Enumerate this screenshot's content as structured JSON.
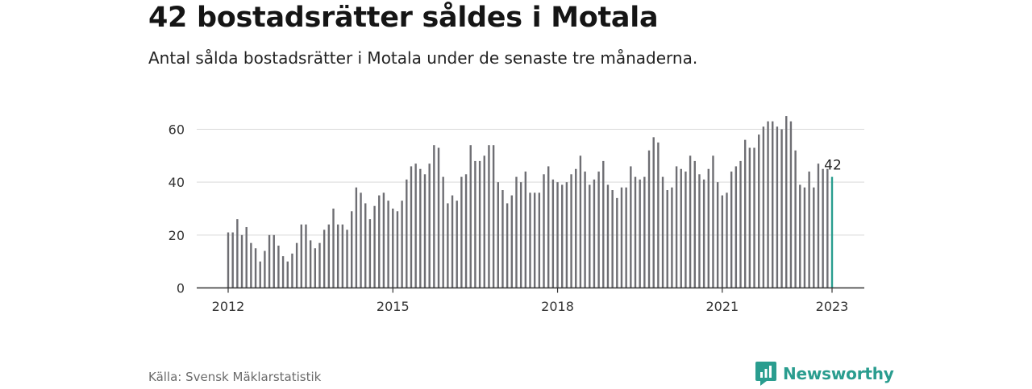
{
  "header": {
    "title": "42 bostadsrätter såldes i Motala",
    "subtitle": "Antal sålda bostadsrätter i Motala under de senaste tre månaderna."
  },
  "footer": {
    "source": "Källa: Svensk Mäklarstatistik",
    "brand": "Newsworthy"
  },
  "colors": {
    "bar": "#6e6e73",
    "highlight": "#2a9d8f",
    "grid": "#d9d9d9",
    "axis": "#333333"
  },
  "chart_data": {
    "type": "bar",
    "title": "42 bostadsrätter såldes i Motala",
    "subtitle": "Antal sålda bostadsrätter i Motala under de senaste tre månaderna.",
    "xlabel": "",
    "ylabel": "",
    "x_start": "2012-01",
    "x_interval": "month",
    "values": [
      21,
      21,
      26,
      20,
      23,
      17,
      15,
      10,
      14,
      20,
      20,
      16,
      12,
      10,
      13,
      17,
      24,
      24,
      18,
      15,
      17,
      22,
      24,
      30,
      24,
      24,
      22,
      29,
      38,
      36,
      32,
      26,
      31,
      35,
      36,
      33,
      30,
      29,
      33,
      41,
      46,
      47,
      45,
      43,
      47,
      54,
      53,
      42,
      32,
      35,
      33,
      42,
      43,
      54,
      48,
      48,
      50,
      54,
      54,
      40,
      37,
      32,
      35,
      42,
      40,
      44,
      36,
      36,
      36,
      43,
      46,
      41,
      40,
      39,
      40,
      43,
      45,
      50,
      44,
      39,
      41,
      44,
      48,
      39,
      37,
      34,
      38,
      38,
      46,
      42,
      41,
      42,
      52,
      57,
      55,
      42,
      37,
      38,
      46,
      45,
      44,
      50,
      48,
      43,
      41,
      45,
      50,
      40,
      35,
      36,
      44,
      46,
      48,
      56,
      53,
      53,
      58,
      61,
      63,
      63,
      61,
      60,
      65,
      63,
      52,
      39,
      38,
      44,
      38,
      47,
      45,
      45,
      42
    ],
    "highlight_last": true,
    "last_value_label": "42",
    "x_ticks": [
      "2012",
      "2015",
      "2018",
      "2021",
      "2023"
    ],
    "y_ticks": [
      0,
      20,
      40,
      60
    ],
    "ylim": [
      0,
      65
    ],
    "grid": true,
    "legend": "none"
  }
}
